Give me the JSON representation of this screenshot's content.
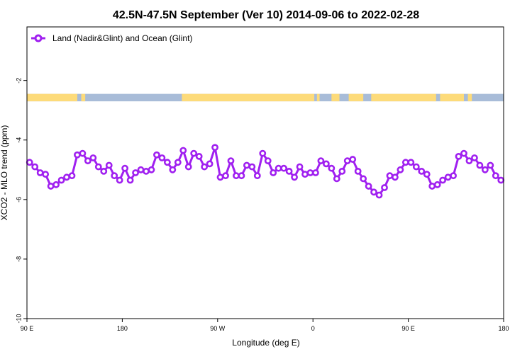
{
  "chart_data": {
    "type": "line",
    "title": "42.5N-47.5N September (Ver 10)   2014-09-06 to 2022-02-28",
    "xlabel": "Longitude (deg E)",
    "ylabel": "XCO2 - MLO trend (ppm)",
    "xlim": [
      90,
      450
    ],
    "ylim": [
      -10,
      -0.2
    ],
    "x_ticks": [
      {
        "value": 90,
        "label": "90 E"
      },
      {
        "value": 162,
        "label": "180"
      },
      {
        "value": 234,
        "label": "90 W"
      },
      {
        "value": 306,
        "label": "0"
      },
      {
        "value": 378,
        "label": "90 E"
      },
      {
        "value": 450,
        "label": "180"
      }
    ],
    "y_ticks": [
      {
        "value": -2,
        "label": "-2"
      },
      {
        "value": -4,
        "label": "-4"
      },
      {
        "value": -6,
        "label": "-6"
      },
      {
        "value": -8,
        "label": "-8"
      },
      {
        "value": -10,
        "label": "-10"
      }
    ],
    "grid": false,
    "legend_position": "top-left",
    "land_ocean_band": {
      "y_range": [
        -2.7,
        -2.45
      ],
      "land_color": "#fddb7a",
      "ocean_color": "#a8bcd8",
      "land_segments": [
        [
          90,
          128
        ],
        [
          131,
          134
        ],
        [
          207,
          307
        ],
        [
          309,
          311
        ],
        [
          320,
          326
        ],
        [
          333,
          344
        ],
        [
          350,
          399
        ],
        [
          402,
          420
        ],
        [
          423,
          426
        ]
      ]
    },
    "series": [
      {
        "name": "Land (Nadir&Glint) and Ocean (Glint)",
        "color": "#a020f0",
        "x": [
          92,
          96,
          100,
          104,
          108,
          112,
          116,
          120,
          124,
          128,
          132,
          136,
          140,
          144,
          148,
          152,
          156,
          160,
          164,
          168,
          172,
          176,
          180,
          184,
          188,
          192,
          196,
          200,
          204,
          208,
          212,
          216,
          220,
          224,
          228,
          232,
          236,
          240,
          244,
          248,
          252,
          256,
          260,
          264,
          268,
          272,
          276,
          280,
          284,
          288,
          292,
          296,
          300,
          304,
          308,
          312,
          316,
          320,
          324,
          328,
          332,
          336,
          340,
          344,
          348,
          352,
          356,
          360,
          364,
          368,
          372,
          376,
          380,
          384,
          388,
          392,
          396,
          400,
          404,
          408,
          412,
          416,
          420,
          424,
          428,
          432,
          436,
          440,
          444,
          448
        ],
        "y": [
          -4.75,
          -4.9,
          -5.1,
          -5.15,
          -5.55,
          -5.5,
          -5.35,
          -5.25,
          -5.2,
          -4.5,
          -4.45,
          -4.7,
          -4.6,
          -4.9,
          -5.05,
          -4.85,
          -5.2,
          -5.35,
          -4.95,
          -5.35,
          -5.1,
          -5.0,
          -5.05,
          -5.0,
          -4.5,
          -4.6,
          -4.75,
          -5.0,
          -4.75,
          -4.35,
          -4.9,
          -4.45,
          -4.55,
          -4.9,
          -4.8,
          -4.25,
          -5.25,
          -5.2,
          -4.7,
          -5.2,
          -5.2,
          -4.85,
          -4.9,
          -5.2,
          -4.45,
          -4.7,
          -5.1,
          -4.95,
          -4.95,
          -5.05,
          -5.25,
          -4.9,
          -5.15,
          -5.1,
          -5.1,
          -4.7,
          -4.8,
          -4.95,
          -5.3,
          -5.05,
          -4.7,
          -4.65,
          -5.05,
          -5.3,
          -5.55,
          -5.75,
          -5.85,
          -5.6,
          -5.2,
          -5.25,
          -5.0,
          -4.75,
          -4.75,
          -4.9,
          -5.05,
          -5.15,
          -5.55,
          -5.5,
          -5.35,
          -5.25,
          -5.2,
          -4.55,
          -4.45,
          -4.7,
          -4.6,
          -4.85,
          -5.0,
          -4.85,
          -5.2,
          -5.35
        ]
      }
    ]
  }
}
